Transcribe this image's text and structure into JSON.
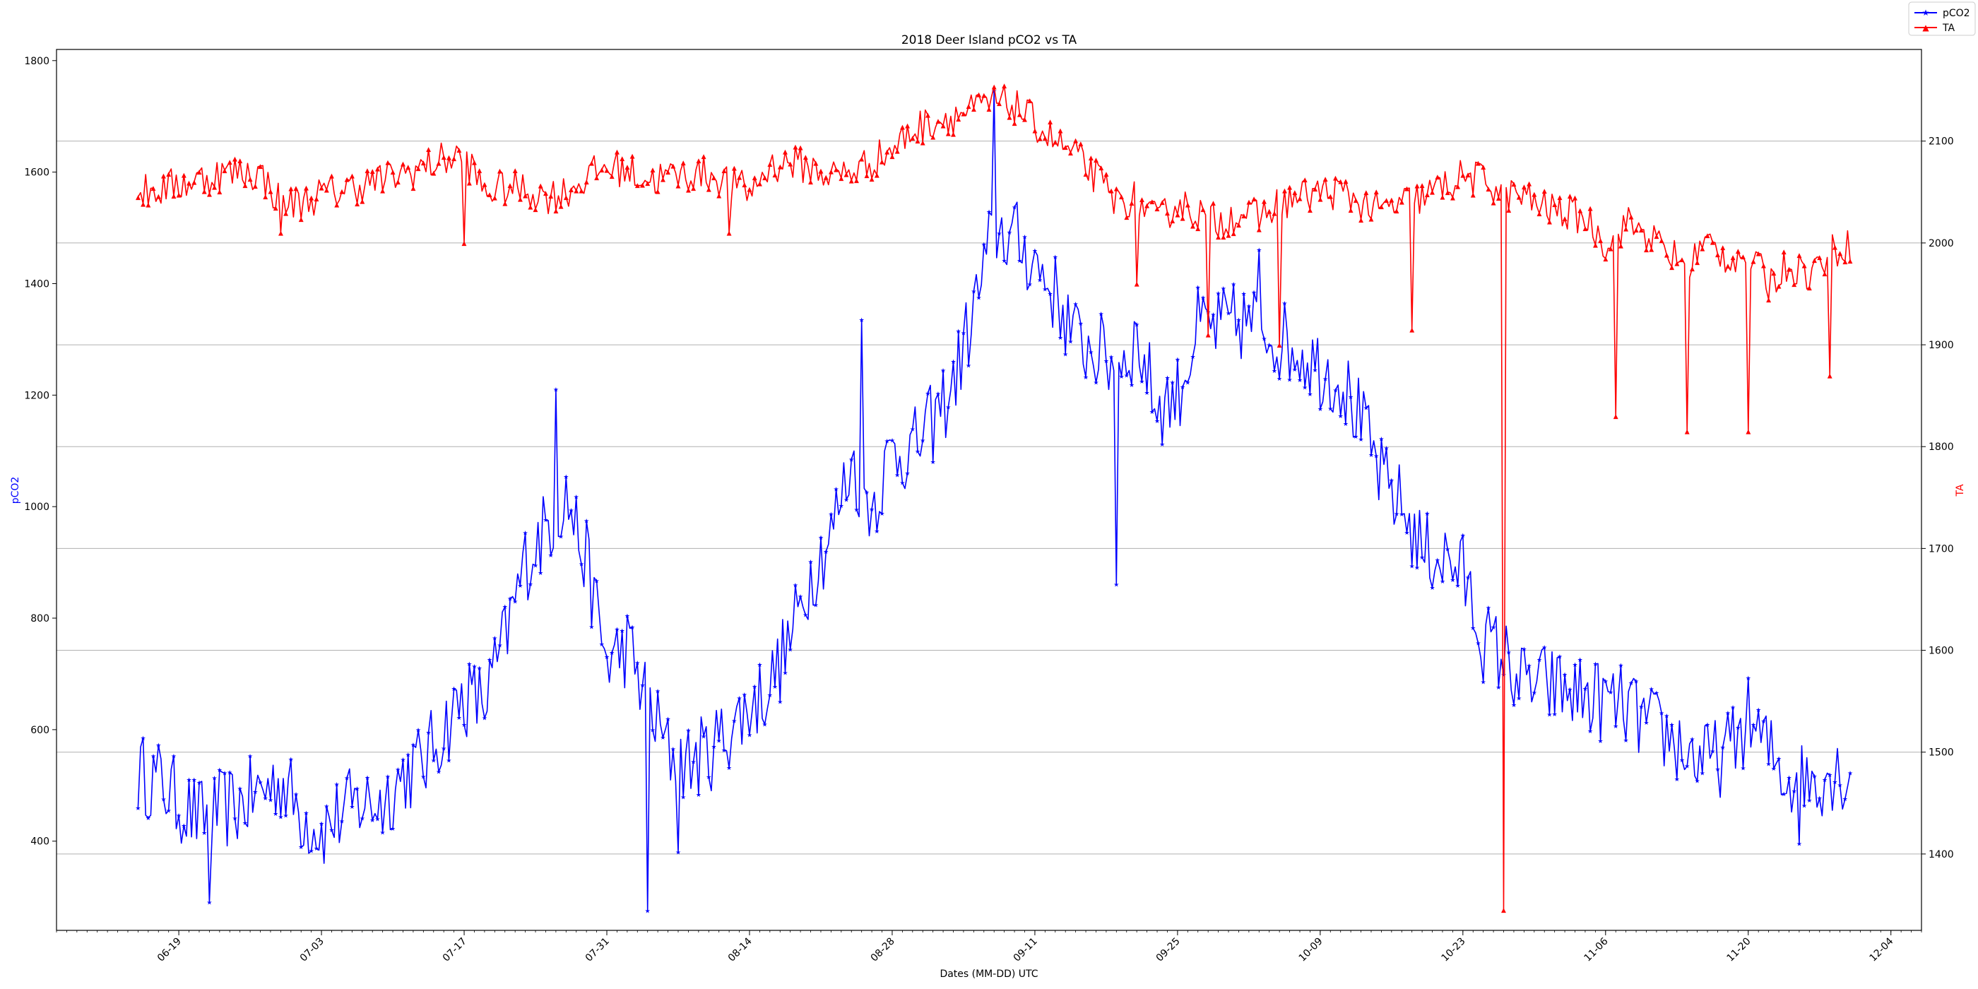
{
  "chart_data": {
    "type": "line",
    "title": "2018 Deer Island pCO2 vs TA",
    "xlabel": "Dates (MM-DD) UTC",
    "x_axis_type": "date",
    "xlim": [
      "2018-06-07",
      "2018-12-07"
    ],
    "x_ticks": [
      "06-19",
      "07-03",
      "07-17",
      "07-31",
      "08-14",
      "08-28",
      "09-11",
      "09-25",
      "10-09",
      "10-23",
      "11-06",
      "11-20",
      "12-04"
    ],
    "x_tick_dates": [
      "2018-06-19",
      "2018-07-03",
      "2018-07-17",
      "2018-07-31",
      "2018-08-14",
      "2018-08-28",
      "2018-09-11",
      "2018-09-25",
      "2018-10-09",
      "2018-10-23",
      "2018-11-06",
      "2018-11-20",
      "2018-12-04"
    ],
    "left_axis": {
      "label": "pCO2",
      "color": "#0000ff",
      "ylim": [
        240,
        1820
      ],
      "ticks": [
        400,
        600,
        800,
        1000,
        1200,
        1400,
        1600,
        1800
      ]
    },
    "right_axis": {
      "label": "TA",
      "color": "#ff0000",
      "ylim": [
        1325,
        2190
      ],
      "ticks": [
        1400,
        1500,
        1600,
        1700,
        1800,
        1900,
        2000,
        2100
      ]
    },
    "grid": "horizontal lines at right-axis ticks",
    "legend": {
      "position": "top-right outside",
      "entries": [
        "pCO2",
        "TA"
      ]
    },
    "series": [
      {
        "name": "pCO2",
        "axis": "left",
        "color": "#0000ff",
        "marker": "star",
        "x": [
          "2018-06-15",
          "2018-06-17",
          "2018-06-19",
          "2018-06-21",
          "2018-06-23",
          "2018-06-25",
          "2018-06-27",
          "2018-06-29",
          "2018-07-01",
          "2018-07-03",
          "2018-07-05",
          "2018-07-07",
          "2018-07-09",
          "2018-07-11",
          "2018-07-13",
          "2018-07-15",
          "2018-07-17",
          "2018-07-19",
          "2018-07-21",
          "2018-07-23",
          "2018-07-25",
          "2018-07-27",
          "2018-07-29",
          "2018-07-31",
          "2018-08-02",
          "2018-08-04",
          "2018-08-06",
          "2018-08-08",
          "2018-08-10",
          "2018-08-12",
          "2018-08-14",
          "2018-08-16",
          "2018-08-18",
          "2018-08-20",
          "2018-08-22",
          "2018-08-24",
          "2018-08-26",
          "2018-08-28",
          "2018-08-30",
          "2018-09-01",
          "2018-09-03",
          "2018-09-05",
          "2018-09-07",
          "2018-09-09",
          "2018-09-11",
          "2018-09-13",
          "2018-09-15",
          "2018-09-17",
          "2018-09-19",
          "2018-09-21",
          "2018-09-23",
          "2018-09-25",
          "2018-09-27",
          "2018-09-29",
          "2018-10-01",
          "2018-10-03",
          "2018-10-05",
          "2018-10-07",
          "2018-10-09",
          "2018-10-11",
          "2018-10-13",
          "2018-10-15",
          "2018-10-17",
          "2018-10-19",
          "2018-10-21",
          "2018-10-23",
          "2018-10-25",
          "2018-10-27",
          "2018-10-29",
          "2018-10-31",
          "2018-11-02",
          "2018-11-04",
          "2018-11-06",
          "2018-11-08",
          "2018-11-10",
          "2018-11-12",
          "2018-11-14",
          "2018-11-16",
          "2018-11-18",
          "2018-11-20",
          "2018-11-22",
          "2018-11-24",
          "2018-11-26",
          "2018-11-28",
          "2018-11-30"
        ],
        "values": [
          520,
          510,
          470,
          440,
          455,
          465,
          490,
          510,
          450,
          420,
          450,
          470,
          470,
          520,
          540,
          600,
          660,
          650,
          760,
          900,
          960,
          1020,
          900,
          720,
          750,
          650,
          560,
          540,
          560,
          600,
          640,
          680,
          760,
          880,
          950,
          1080,
          1000,
          1100,
          1100,
          1150,
          1220,
          1350,
          1500,
          1480,
          1440,
          1380,
          1300,
          1280,
          1250,
          1300,
          1180,
          1200,
          1320,
          1320,
          1330,
          1330,
          1300,
          1280,
          1250,
          1230,
          1150,
          1050,
          1000,
          920,
          910,
          880,
          760,
          730,
          680,
          680,
          670,
          660,
          650,
          640,
          610,
          590,
          560,
          540,
          560,
          620,
          560,
          510,
          510,
          525,
          520
        ],
        "spikes": [
          {
            "x": "2018-06-22",
            "value": 290
          },
          {
            "x": "2018-07-26",
            "value": 1210
          },
          {
            "x": "2018-08-04",
            "value": 275
          },
          {
            "x": "2018-08-07",
            "value": 380
          },
          {
            "x": "2018-08-25",
            "value": 1335
          },
          {
            "x": "2018-09-07",
            "value": 1745
          },
          {
            "x": "2018-09-19",
            "value": 860
          },
          {
            "x": "2018-10-03",
            "value": 1460
          },
          {
            "x": "2018-11-25",
            "value": 395
          }
        ]
      },
      {
        "name": "TA",
        "axis": "right",
        "color": "#ff0000",
        "marker": "triangle",
        "x": [
          "2018-06-15",
          "2018-06-17",
          "2018-06-19",
          "2018-06-21",
          "2018-06-23",
          "2018-06-25",
          "2018-06-27",
          "2018-06-29",
          "2018-07-01",
          "2018-07-03",
          "2018-07-05",
          "2018-07-07",
          "2018-07-09",
          "2018-07-11",
          "2018-07-13",
          "2018-07-15",
          "2018-07-17",
          "2018-07-19",
          "2018-07-21",
          "2018-07-23",
          "2018-07-25",
          "2018-07-27",
          "2018-07-29",
          "2018-07-31",
          "2018-08-02",
          "2018-08-04",
          "2018-08-06",
          "2018-08-08",
          "2018-08-10",
          "2018-08-12",
          "2018-08-14",
          "2018-08-16",
          "2018-08-18",
          "2018-08-20",
          "2018-08-22",
          "2018-08-24",
          "2018-08-26",
          "2018-08-28",
          "2018-08-30",
          "2018-09-01",
          "2018-09-03",
          "2018-09-05",
          "2018-09-07",
          "2018-09-09",
          "2018-09-11",
          "2018-09-13",
          "2018-09-15",
          "2018-09-17",
          "2018-09-19",
          "2018-09-21",
          "2018-09-23",
          "2018-09-25",
          "2018-09-27",
          "2018-09-29",
          "2018-10-01",
          "2018-10-03",
          "2018-10-05",
          "2018-10-07",
          "2018-10-09",
          "2018-10-11",
          "2018-10-13",
          "2018-10-15",
          "2018-10-17",
          "2018-10-19",
          "2018-10-21",
          "2018-10-23",
          "2018-10-25",
          "2018-10-27",
          "2018-10-29",
          "2018-10-31",
          "2018-11-02",
          "2018-11-04",
          "2018-11-06",
          "2018-11-08",
          "2018-11-10",
          "2018-11-12",
          "2018-11-14",
          "2018-11-16",
          "2018-11-18",
          "2018-11-20",
          "2018-11-22",
          "2018-11-24",
          "2018-11-26",
          "2018-11-28",
          "2018-11-30"
        ],
        "values": [
          2050,
          2052,
          2058,
          2062,
          2068,
          2070,
          2068,
          2040,
          2040,
          2048,
          2052,
          2058,
          2062,
          2068,
          2075,
          2082,
          2086,
          2050,
          2055,
          2052,
          2046,
          2050,
          2064,
          2075,
          2072,
          2062,
          2065,
          2068,
          2068,
          2060,
          2050,
          2075,
          2080,
          2074,
          2066,
          2070,
          2080,
          2092,
          2110,
          2120,
          2125,
          2130,
          2138,
          2135,
          2118,
          2100,
          2085,
          2065,
          2040,
          2045,
          2020,
          2040,
          2030,
          2020,
          2030,
          2025,
          2040,
          2045,
          2050,
          2050,
          2040,
          2030,
          2040,
          2045,
          2055,
          2065,
          2062,
          2050,
          2045,
          2035,
          2030,
          2025,
          2000,
          2020,
          2010,
          1990,
          1980,
          2000,
          1985,
          1990,
          1960,
          1980,
          1970,
          1990,
          2000
        ],
        "spikes": [
          {
            "x": "2018-06-29",
            "value": 2010
          },
          {
            "x": "2018-07-17",
            "value": 2000
          },
          {
            "x": "2018-08-12",
            "value": 2010
          },
          {
            "x": "2018-09-21",
            "value": 1960
          },
          {
            "x": "2018-09-28",
            "value": 1910
          },
          {
            "x": "2018-10-05",
            "value": 1900
          },
          {
            "x": "2018-10-18",
            "value": 1915
          },
          {
            "x": "2018-10-27",
            "value": 1345
          },
          {
            "x": "2018-11-07",
            "value": 1830
          },
          {
            "x": "2018-11-14",
            "value": 1815
          },
          {
            "x": "2018-11-20",
            "value": 1815
          },
          {
            "x": "2018-11-28",
            "value": 1870
          }
        ]
      }
    ]
  }
}
